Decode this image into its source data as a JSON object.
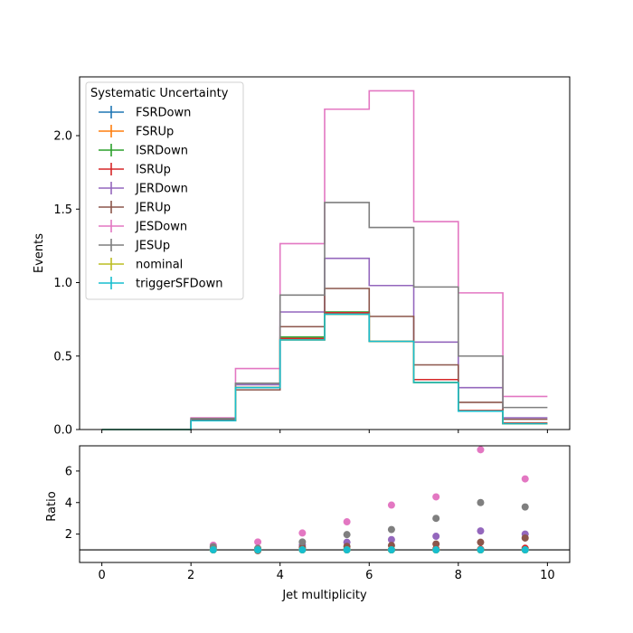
{
  "chart_data": {
    "type": "step-histogram-with-ratio",
    "main_panel": {
      "ylabel": "Events",
      "ylim": [
        0,
        2.4
      ],
      "yticks": [
        0.0,
        0.5,
        1.0,
        1.5,
        2.0
      ],
      "ytick_labels": [
        "0.0",
        "0.5",
        "1.0",
        "1.5",
        "2.0"
      ],
      "legend": {
        "title": "Systematic Uncertainty",
        "placement": "upper-left"
      }
    },
    "ratio_panel": {
      "ylabel": "Ratio",
      "ylim": [
        0.2,
        7.6
      ],
      "yticks": [
        2,
        4,
        6
      ],
      "ytick_labels": [
        "2",
        "4",
        "6"
      ],
      "reference_line": 1
    },
    "xlabel": "Jet multiplicity",
    "xlim": [
      -0.5,
      10.5
    ],
    "xticks": [
      0,
      2,
      4,
      6,
      8,
      10
    ],
    "xtick_labels": [
      "0",
      "2",
      "4",
      "6",
      "8",
      "10"
    ],
    "bin_edges": [
      0,
      2,
      3,
      4,
      5,
      6,
      7,
      8,
      9,
      10
    ],
    "series": [
      {
        "name": "FSRDown",
        "color": "#1f77b4",
        "values": [
          0.0,
          0.06,
          0.285,
          0.61,
          0.785,
          0.6,
          0.32,
          0.125,
          0.04
        ]
      },
      {
        "name": "FSRUp",
        "color": "#ff7f0e",
        "values": [
          0.0,
          0.06,
          0.285,
          0.61,
          0.785,
          0.6,
          0.32,
          0.125,
          0.04
        ]
      },
      {
        "name": "ISRDown",
        "color": "#2ca02c",
        "values": [
          0.0,
          0.06,
          0.285,
          0.63,
          0.8,
          0.6,
          0.32,
          0.125,
          0.04
        ]
      },
      {
        "name": "ISRUp",
        "color": "#d62728",
        "values": [
          0.0,
          0.06,
          0.285,
          0.62,
          0.795,
          0.6,
          0.34,
          0.13,
          0.045
        ]
      },
      {
        "name": "JERDown",
        "color": "#9467bd",
        "values": [
          0.0,
          0.07,
          0.305,
          0.8,
          1.165,
          0.98,
          0.595,
          0.285,
          0.08
        ]
      },
      {
        "name": "JERUp",
        "color": "#8c564b",
        "values": [
          0.0,
          0.065,
          0.27,
          0.7,
          0.96,
          0.77,
          0.44,
          0.185,
          0.07
        ]
      },
      {
        "name": "JESDown",
        "color": "#e377c2",
        "values": [
          0.0,
          0.08,
          0.415,
          1.265,
          2.18,
          2.305,
          1.415,
          0.93,
          0.225
        ]
      },
      {
        "name": "JESUp",
        "color": "#7f7f7f",
        "values": [
          0.0,
          0.075,
          0.315,
          0.915,
          1.545,
          1.375,
          0.97,
          0.5,
          0.15
        ]
      },
      {
        "name": "nominal",
        "color": "#bcbd22",
        "values": [
          0.0,
          0.06,
          0.285,
          0.61,
          0.785,
          0.6,
          0.32,
          0.125,
          0.04
        ]
      },
      {
        "name": "triggerSFDown",
        "color": "#17becf",
        "values": [
          0.0,
          0.06,
          0.285,
          0.61,
          0.785,
          0.6,
          0.32,
          0.125,
          0.04
        ]
      }
    ],
    "ratio_points": {
      "x": [
        2.5,
        3.5,
        4.5,
        5.5,
        6.5,
        7.5,
        8.5,
        9.5
      ],
      "series": [
        {
          "name": "FSRDown",
          "values": [
            1.0,
            1.0,
            1.0,
            1.0,
            1.0,
            1.0,
            1.0,
            1.0
          ]
        },
        {
          "name": "FSRUp",
          "values": [
            1.0,
            1.0,
            1.0,
            1.0,
            1.0,
            1.0,
            1.0,
            1.0
          ]
        },
        {
          "name": "ISRDown",
          "values": [
            1.0,
            1.0,
            1.03,
            1.02,
            1.0,
            1.0,
            1.0,
            1.0
          ]
        },
        {
          "name": "ISRUp",
          "values": [
            1.0,
            1.0,
            1.02,
            1.01,
            1.0,
            1.06,
            1.04,
            1.1
          ]
        },
        {
          "name": "JERDown",
          "values": [
            1.15,
            1.07,
            1.31,
            1.48,
            1.65,
            1.86,
            2.2,
            2.0
          ]
        },
        {
          "name": "JERUp",
          "values": [
            1.05,
            0.95,
            1.15,
            1.22,
            1.28,
            1.37,
            1.48,
            1.75
          ]
        },
        {
          "name": "JESDown",
          "values": [
            1.3,
            1.5,
            2.07,
            2.78,
            3.84,
            4.36,
            7.35,
            5.5
          ]
        },
        {
          "name": "JESUp",
          "values": [
            1.2,
            1.1,
            1.5,
            1.97,
            2.29,
            3.0,
            4.0,
            3.72
          ]
        },
        {
          "name": "nominal",
          "values": [
            1.0,
            1.0,
            1.0,
            1.0,
            1.0,
            1.0,
            1.0,
            1.0
          ]
        },
        {
          "name": "triggerSFDown",
          "values": [
            1.0,
            1.0,
            1.0,
            1.0,
            1.0,
            1.0,
            1.0,
            1.0
          ]
        }
      ]
    }
  }
}
